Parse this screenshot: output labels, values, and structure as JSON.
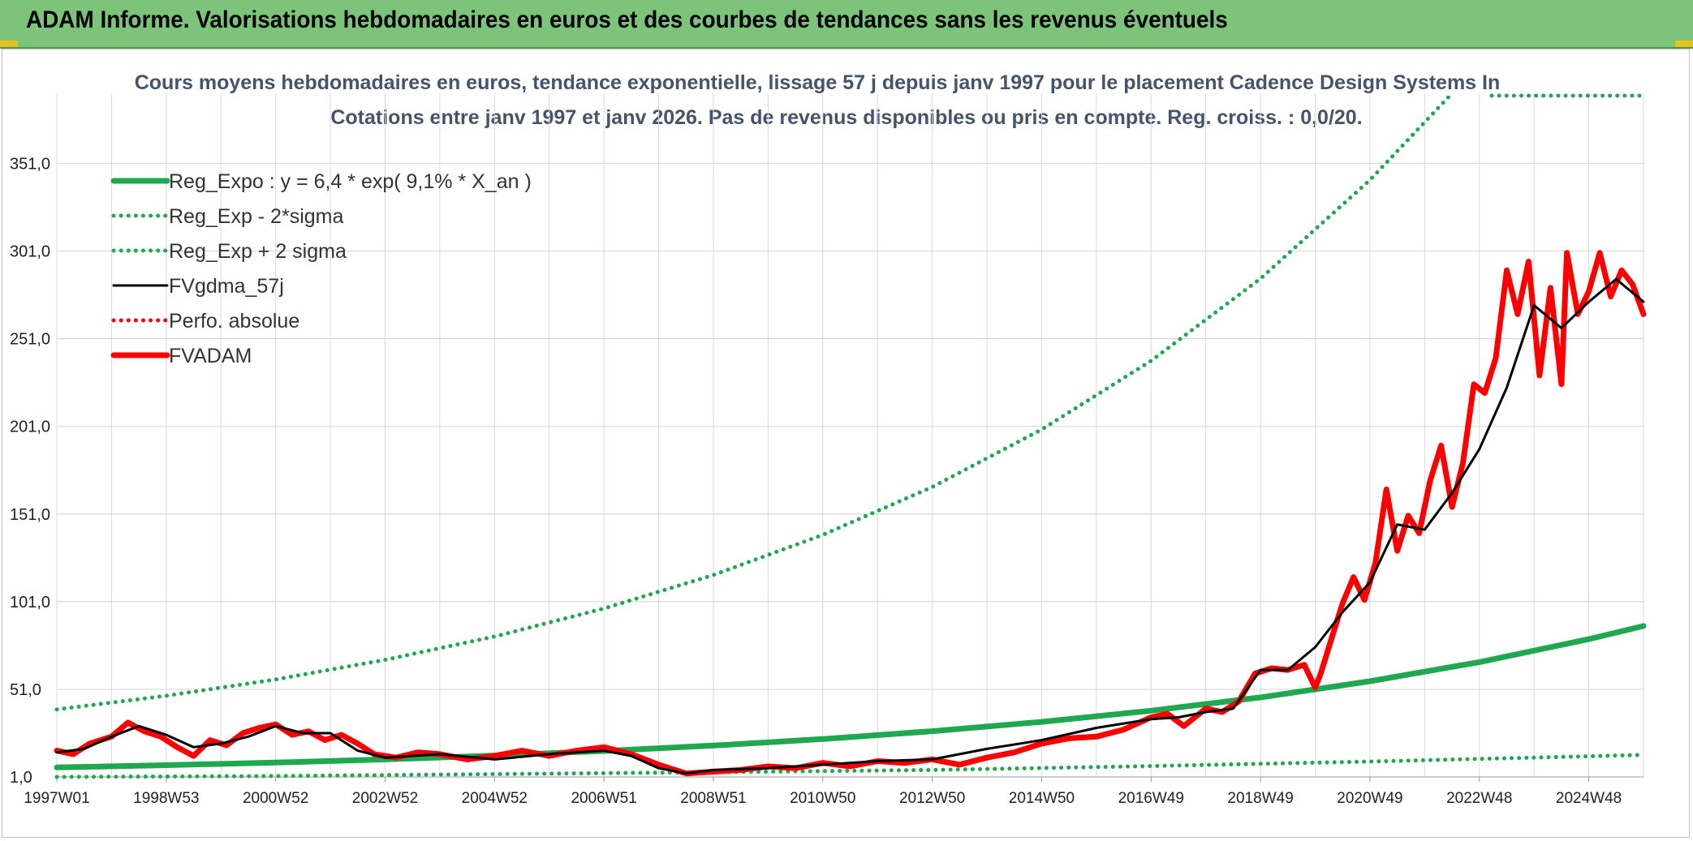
{
  "header": {
    "title": "ADAM Informe. Valorisations hebdomadaires en euros et des courbes de tendances sans les revenus éventuels"
  },
  "colors": {
    "banner": "#7cc47a",
    "trend": "#1fa84f",
    "smooth": "#000000",
    "price": "#ff0000",
    "grid": "#d9d9d9"
  },
  "chart_data": {
    "type": "line",
    "title": "Cours moyens hebdomadaires en euros, tendance exponentielle, lissage 57 j depuis janv 1997 pour le placement Cadence Design Systems In",
    "subtitle": "Cotations entre janv 1997 et janv 2026. Pas de revenus disponibles ou pris en compte. Reg. croiss. : 0,0/20.",
    "xlabel": "",
    "ylabel": "",
    "ylim": [
      1,
      391
    ],
    "xlim": [
      1997.0,
      2026.0
    ],
    "grid": true,
    "legend_position": "top-left",
    "y_ticks": [
      "351,0",
      "301,0",
      "251,0",
      "201,0",
      "151,0",
      "101,0",
      "51,0",
      "1,0"
    ],
    "y_tick_values": [
      351,
      301,
      251,
      201,
      151,
      101,
      51,
      1
    ],
    "x_ticks": [
      "1997W01",
      "1998W53",
      "2000W52",
      "2002W52",
      "2004W52",
      "2006W51",
      "2008W51",
      "2010W50",
      "2012W50",
      "2014W50",
      "2016W49",
      "2018W49",
      "2020W49",
      "2022W48",
      "2024W48"
    ],
    "x_tick_values": [
      1997.0,
      1999.0,
      2001.0,
      2003.0,
      2005.0,
      2007.0,
      2009.0,
      2011.0,
      2013.0,
      2015.0,
      2017.0,
      2019.0,
      2021.0,
      2023.0,
      2025.0
    ],
    "series": [
      {
        "name": "Reg_Expo : y = 6,4 * exp( 9,1% *  X_an )",
        "style": "solid-thick",
        "color": "#1fa84f",
        "x": [
          1997,
          1999,
          2001,
          2003,
          2005,
          2007,
          2009,
          2011,
          2013,
          2015,
          2017,
          2019,
          2021,
          2023,
          2025,
          2026
        ],
        "y": [
          6.4,
          7.7,
          9.2,
          11.0,
          13.2,
          15.8,
          18.9,
          22.6,
          27.1,
          32.4,
          38.8,
          46.4,
          55.6,
          66.5,
          79.6,
          87.1
        ]
      },
      {
        "name": "Reg_Exp - 2*sigma",
        "style": "dotted",
        "color": "#1fa84f",
        "x": [
          1997,
          2001,
          2005,
          2009,
          2013,
          2017,
          2021,
          2025,
          2026
        ],
        "y": [
          1.0,
          1.5,
          2.6,
          3.7,
          5.0,
          7.2,
          9.8,
          12.8,
          13.6
        ]
      },
      {
        "name": "Reg_Exp + 2 sigma",
        "style": "dotted",
        "color": "#1fa84f",
        "x": [
          1997,
          1999,
          2001,
          2003,
          2005,
          2007,
          2009,
          2011,
          2013,
          2015,
          2017,
          2019,
          2021,
          2022.5
        ],
        "y": [
          39.5,
          47.3,
          56.6,
          67.8,
          81.1,
          97.1,
          116.2,
          139.1,
          166.4,
          199.2,
          238.4,
          285.3,
          341.5,
          391
        ]
      },
      {
        "name": "FVgdma_57j",
        "style": "solid",
        "color": "#000000",
        "x": [
          1997.0,
          1997.5,
          1998.0,
          1998.5,
          1999.0,
          1999.5,
          2000.0,
          2000.5,
          2001.0,
          2001.5,
          2002.0,
          2002.5,
          2003.0,
          2004.0,
          2005.0,
          2006.0,
          2007.0,
          2007.5,
          2008.0,
          2008.5,
          2009.0,
          2010.0,
          2011.0,
          2012.0,
          2013.0,
          2014.0,
          2015.0,
          2016.0,
          2017.0,
          2017.5,
          2018.0,
          2018.5,
          2019.0,
          2019.5,
          2020.0,
          2020.5,
          2021.0,
          2021.5,
          2022.0,
          2022.5,
          2023.0,
          2023.5,
          2024.0,
          2024.5,
          2025.0,
          2025.5,
          2026.0
        ],
        "y": [
          15,
          17,
          24,
          30,
          25,
          18,
          20,
          24,
          30,
          26,
          26,
          16,
          12,
          14,
          11,
          14,
          16,
          13,
          6,
          3,
          5,
          6,
          8,
          10,
          11,
          17,
          22,
          29,
          34,
          35,
          38,
          40,
          62,
          62,
          75,
          95,
          112,
          145,
          142,
          163,
          188,
          223,
          270,
          257,
          272,
          285,
          272
        ]
      },
      {
        "name": "Perfo. absolue",
        "style": "dotted",
        "color": "#ff0000",
        "x": [],
        "y": []
      },
      {
        "name": "FVADAM",
        "style": "solid-thick",
        "color": "#ff0000",
        "x": [
          1997.0,
          1997.3,
          1997.6,
          1998.0,
          1998.3,
          1998.6,
          1998.9,
          1999.2,
          1999.5,
          1999.8,
          2000.1,
          2000.4,
          2000.7,
          2001.0,
          2001.3,
          2001.6,
          2001.9,
          2002.2,
          2002.5,
          2002.8,
          2003.2,
          2003.6,
          2004.0,
          2004.5,
          2005.0,
          2005.5,
          2006.0,
          2006.5,
          2007.0,
          2007.5,
          2008.0,
          2008.5,
          2009.0,
          2009.5,
          2010.0,
          2010.5,
          2011.0,
          2011.5,
          2012.0,
          2012.5,
          2013.0,
          2013.5,
          2014.0,
          2014.5,
          2015.0,
          2015.5,
          2016.0,
          2016.5,
          2017.0,
          2017.3,
          2017.6,
          2018.0,
          2018.3,
          2018.6,
          2018.9,
          2019.2,
          2019.5,
          2019.8,
          2020.0,
          2020.1,
          2020.3,
          2020.5,
          2020.7,
          2020.9,
          2021.1,
          2021.3,
          2021.5,
          2021.7,
          2021.9,
          2022.1,
          2022.3,
          2022.5,
          2022.7,
          2022.9,
          2023.1,
          2023.3,
          2023.5,
          2023.7,
          2023.9,
          2024.1,
          2024.3,
          2024.5,
          2024.6,
          2024.8,
          2025.0,
          2025.2,
          2025.4,
          2025.6,
          2025.8,
          2026.0
        ],
        "y": [
          16,
          14,
          20,
          24,
          32,
          27,
          24,
          18,
          13,
          22,
          19,
          26,
          29,
          31,
          25,
          27,
          22,
          25,
          20,
          14,
          12,
          15,
          14,
          11,
          13,
          16,
          13,
          16,
          18,
          14,
          8,
          3,
          4,
          5,
          7,
          6,
          9,
          7,
          10,
          9,
          11,
          8,
          12,
          15,
          20,
          23,
          24,
          28,
          35,
          37,
          30,
          40,
          38,
          44,
          60,
          63,
          62,
          65,
          52,
          60,
          80,
          100,
          115,
          102,
          123,
          165,
          130,
          150,
          140,
          170,
          190,
          155,
          180,
          225,
          220,
          240,
          290,
          265,
          295,
          230,
          280,
          225,
          300,
          265,
          278,
          300,
          275,
          290,
          282,
          265
        ]
      }
    ]
  }
}
